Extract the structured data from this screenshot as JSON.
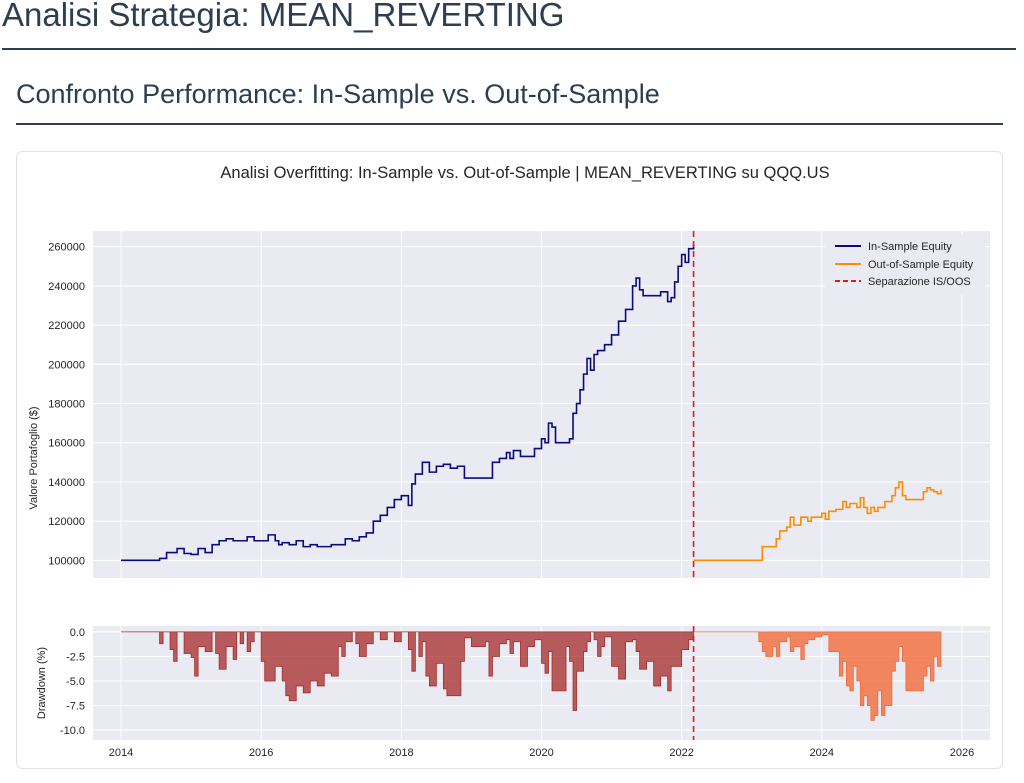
{
  "header": {
    "title": "Analisi Strategia: MEAN_REVERTING"
  },
  "section": {
    "title": "Confronto Performance: In-Sample vs. Out-of-Sample"
  },
  "colors": {
    "in_sample": "#0a0a80",
    "out_of_sample": "#ff8c00",
    "separator": "#e31a1c",
    "dd_in_sample": "#a52a2a",
    "dd_out_of_sample": "#f26b3a",
    "plot_bg": "#eaeaf2"
  },
  "chart_data": [
    {
      "type": "line",
      "title": "Analisi Overfitting: In-Sample vs. Out-of-Sample | MEAN_REVERTING su QQQ.US",
      "ylabel": "Valore Portafoglio ($)",
      "xlabel": "",
      "xlim": [
        2013.6,
        2026.4
      ],
      "ylim": [
        91000,
        268000
      ],
      "x_ticks": [
        2014,
        2016,
        2018,
        2020,
        2022,
        2024,
        2026
      ],
      "x_tick_labels": [
        "2014",
        "2016",
        "2018",
        "2020",
        "2022",
        "2024",
        "2026"
      ],
      "y_ticks": [
        100000,
        120000,
        140000,
        160000,
        180000,
        200000,
        220000,
        240000,
        260000
      ],
      "y_tick_labels": [
        "100000",
        "120000",
        "140000",
        "160000",
        "180000",
        "200000",
        "220000",
        "240000",
        "260000"
      ],
      "grid": true,
      "legend_position": "top-right",
      "separator": {
        "name": "Separazione IS/OOS",
        "x": 2022.17
      },
      "series": [
        {
          "name": "In-Sample Equity",
          "x": [
            2014.0,
            2014.5,
            2014.55,
            2014.65,
            2014.8,
            2014.9,
            2015.0,
            2015.1,
            2015.2,
            2015.3,
            2015.4,
            2015.5,
            2015.6,
            2015.7,
            2015.8,
            2015.9,
            2016.0,
            2016.1,
            2016.2,
            2016.25,
            2016.3,
            2016.4,
            2016.5,
            2016.6,
            2016.7,
            2016.8,
            2017.0,
            2017.2,
            2017.3,
            2017.4,
            2017.5,
            2017.6,
            2017.7,
            2017.8,
            2017.9,
            2018.0,
            2018.1,
            2018.15,
            2018.2,
            2018.3,
            2018.4,
            2018.5,
            2018.6,
            2018.7,
            2018.8,
            2018.85,
            2018.9,
            2019.0,
            2019.2,
            2019.3,
            2019.4,
            2019.5,
            2019.55,
            2019.6,
            2019.7,
            2019.8,
            2019.9,
            2020.0,
            2020.05,
            2020.1,
            2020.15,
            2020.2,
            2020.3,
            2020.4,
            2020.45,
            2020.5,
            2020.55,
            2020.6,
            2020.65,
            2020.7,
            2020.75,
            2020.8,
            2020.9,
            2021.0,
            2021.1,
            2021.2,
            2021.3,
            2021.35,
            2021.4,
            2021.45,
            2021.5,
            2021.6,
            2021.7,
            2021.8,
            2021.85,
            2021.9,
            2021.95,
            2022.0,
            2022.05,
            2022.1,
            2022.17
          ],
          "values": [
            100000,
            100000,
            101000,
            104000,
            106000,
            103500,
            103000,
            106000,
            104000,
            108000,
            110000,
            111000,
            110000,
            110000,
            112000,
            110000,
            110000,
            113000,
            110000,
            108000,
            109000,
            108000,
            110000,
            107000,
            108000,
            107000,
            108000,
            111000,
            110000,
            112000,
            114000,
            120000,
            123000,
            127000,
            131000,
            133000,
            128000,
            139000,
            144000,
            150000,
            145000,
            148000,
            149000,
            147000,
            148000,
            148000,
            142000,
            142000,
            142000,
            150000,
            152000,
            155000,
            152000,
            156000,
            153000,
            153000,
            157000,
            162000,
            160000,
            170000,
            168000,
            160000,
            160000,
            162000,
            175000,
            180000,
            187000,
            195000,
            203000,
            197000,
            205000,
            207000,
            210000,
            215000,
            222000,
            228000,
            240000,
            244000,
            238000,
            235000,
            235000,
            235000,
            237000,
            232000,
            234000,
            242000,
            250000,
            256000,
            252000,
            259000,
            261000
          ]
        },
        {
          "name": "Out-of-Sample Equity",
          "x": [
            2022.17,
            2022.5,
            2023.0,
            2023.1,
            2023.15,
            2023.3,
            2023.35,
            2023.4,
            2023.5,
            2023.55,
            2023.6,
            2023.7,
            2023.8,
            2023.85,
            2023.9,
            2024.0,
            2024.05,
            2024.1,
            2024.2,
            2024.3,
            2024.35,
            2024.4,
            2024.5,
            2024.55,
            2024.6,
            2024.65,
            2024.7,
            2024.75,
            2024.8,
            2024.9,
            2025.0,
            2025.05,
            2025.1,
            2025.15,
            2025.2,
            2025.3,
            2025.4,
            2025.45,
            2025.5,
            2025.55,
            2025.6,
            2025.65,
            2025.7
          ],
          "values": [
            100000,
            100000,
            100000,
            100000,
            107000,
            107000,
            111000,
            115000,
            117000,
            122000,
            118000,
            122000,
            120000,
            122000,
            122000,
            124000,
            121000,
            125000,
            126000,
            130000,
            127000,
            129000,
            127000,
            132000,
            127000,
            124000,
            127000,
            125000,
            127000,
            130000,
            133000,
            137000,
            140000,
            133000,
            131000,
            131000,
            131000,
            135000,
            137000,
            136000,
            135000,
            134000,
            136000
          ]
        }
      ]
    },
    {
      "type": "area",
      "title": "",
      "ylabel": "Drawdown (%)",
      "xlabel": "",
      "xlim": [
        2013.6,
        2026.4
      ],
      "ylim": [
        -11,
        0.6
      ],
      "x_ticks": [
        2014,
        2016,
        2018,
        2020,
        2022,
        2024,
        2026
      ],
      "x_tick_labels": [
        "2014",
        "2016",
        "2018",
        "2020",
        "2022",
        "2024",
        "2026"
      ],
      "y_ticks": [
        0,
        -2.5,
        -5,
        -7.5,
        -10
      ],
      "y_tick_labels": [
        "0.0",
        "-2.5",
        "-5.0",
        "-7.5",
        "-10.0"
      ],
      "grid": true,
      "series": [
        {
          "name": "In-Sample Drawdown",
          "x": [
            2014.0,
            2014.5,
            2014.55,
            2014.6,
            2014.7,
            2014.75,
            2014.8,
            2014.9,
            2015.0,
            2015.05,
            2015.1,
            2015.2,
            2015.3,
            2015.35,
            2015.4,
            2015.5,
            2015.6,
            2015.65,
            2015.7,
            2015.75,
            2015.8,
            2015.85,
            2015.9,
            2016.0,
            2016.05,
            2016.1,
            2016.2,
            2016.3,
            2016.35,
            2016.4,
            2016.5,
            2016.6,
            2016.7,
            2016.8,
            2016.9,
            2017.0,
            2017.1,
            2017.15,
            2017.2,
            2017.3,
            2017.35,
            2017.4,
            2017.5,
            2017.6,
            2017.7,
            2017.8,
            2017.9,
            2018.0,
            2018.1,
            2018.15,
            2018.2,
            2018.25,
            2018.3,
            2018.35,
            2018.4,
            2018.5,
            2018.6,
            2018.65,
            2018.7,
            2018.8,
            2018.85,
            2018.9,
            2019.0,
            2019.2,
            2019.25,
            2019.3,
            2019.4,
            2019.5,
            2019.55,
            2019.6,
            2019.7,
            2019.8,
            2019.9,
            2020.0,
            2020.05,
            2020.1,
            2020.15,
            2020.2,
            2020.3,
            2020.35,
            2020.4,
            2020.45,
            2020.5,
            2020.55,
            2020.6,
            2020.65,
            2020.7,
            2020.75,
            2020.8,
            2020.85,
            2020.9,
            2021.0,
            2021.1,
            2021.2,
            2021.3,
            2021.35,
            2021.4,
            2021.5,
            2021.6,
            2021.7,
            2021.8,
            2021.85,
            2021.9,
            2022.0,
            2022.1,
            2022.17
          ],
          "values": [
            0,
            0,
            -1.2,
            0,
            -1.8,
            -3,
            0,
            -2.2,
            -2.6,
            -4.5,
            -1.5,
            -2,
            0,
            -2.2,
            -3.8,
            -1.5,
            -2.8,
            0,
            -1.2,
            0,
            -2,
            -1,
            0,
            -3,
            -5,
            -5,
            -3.5,
            -5,
            -6.5,
            -7,
            -5.5,
            -6.2,
            -5,
            -5.5,
            -4.2,
            -4.5,
            -1.5,
            -2.5,
            -1,
            0,
            -1.2,
            -2.5,
            -1.2,
            0,
            -0.8,
            0,
            -1,
            0,
            -1.8,
            -4,
            0,
            -2.5,
            -1,
            -4.5,
            -5.5,
            -3.2,
            -5.8,
            -6.5,
            -6.5,
            -6.5,
            -3,
            -0.6,
            -1.5,
            -1,
            -4.5,
            -2.5,
            -1.2,
            -0.8,
            -2.2,
            -1,
            -3.5,
            -1.5,
            -0.8,
            -3.2,
            -4.2,
            -2,
            -6,
            -6,
            -6,
            -1.5,
            -3,
            -8,
            -4,
            -4,
            -2,
            -1,
            0,
            -0.8,
            -2.5,
            -1.5,
            -0.5,
            -3.5,
            -4.8,
            -1,
            -0.8,
            -2,
            -3.8,
            -3,
            -5.5,
            -4.5,
            -6,
            -3.5,
            -3.5,
            -1.8,
            -0.8,
            0
          ]
        },
        {
          "name": "Out-of-Sample Drawdown",
          "x": [
            2022.17,
            2023.0,
            2023.1,
            2023.15,
            2023.2,
            2023.3,
            2023.35,
            2023.4,
            2023.5,
            2023.55,
            2023.6,
            2023.7,
            2023.75,
            2023.8,
            2023.9,
            2024.0,
            2024.1,
            2024.2,
            2024.25,
            2024.3,
            2024.35,
            2024.4,
            2024.45,
            2024.5,
            2024.55,
            2024.6,
            2024.65,
            2024.7,
            2024.75,
            2024.8,
            2024.85,
            2024.9,
            2025.0,
            2025.05,
            2025.1,
            2025.15,
            2025.2,
            2025.3,
            2025.4,
            2025.45,
            2025.5,
            2025.55,
            2025.6,
            2025.65,
            2025.7
          ],
          "values": [
            0,
            0,
            -1,
            -2,
            -2.5,
            -1.5,
            -2.5,
            -1,
            -0.5,
            -2,
            -1.5,
            -2.8,
            -1.2,
            -0.8,
            -0.5,
            -0.3,
            -2,
            -2,
            -4.5,
            -3,
            -5.5,
            -6,
            -3.5,
            -5,
            -7.5,
            -6.5,
            -7.5,
            -9,
            -8.5,
            -6,
            -8.5,
            -7.5,
            -4,
            -3,
            -1.5,
            -3,
            -6,
            -6,
            -6,
            -4.5,
            -3.5,
            -5,
            -2.5,
            -3.5,
            -2.5
          ]
        }
      ]
    }
  ]
}
